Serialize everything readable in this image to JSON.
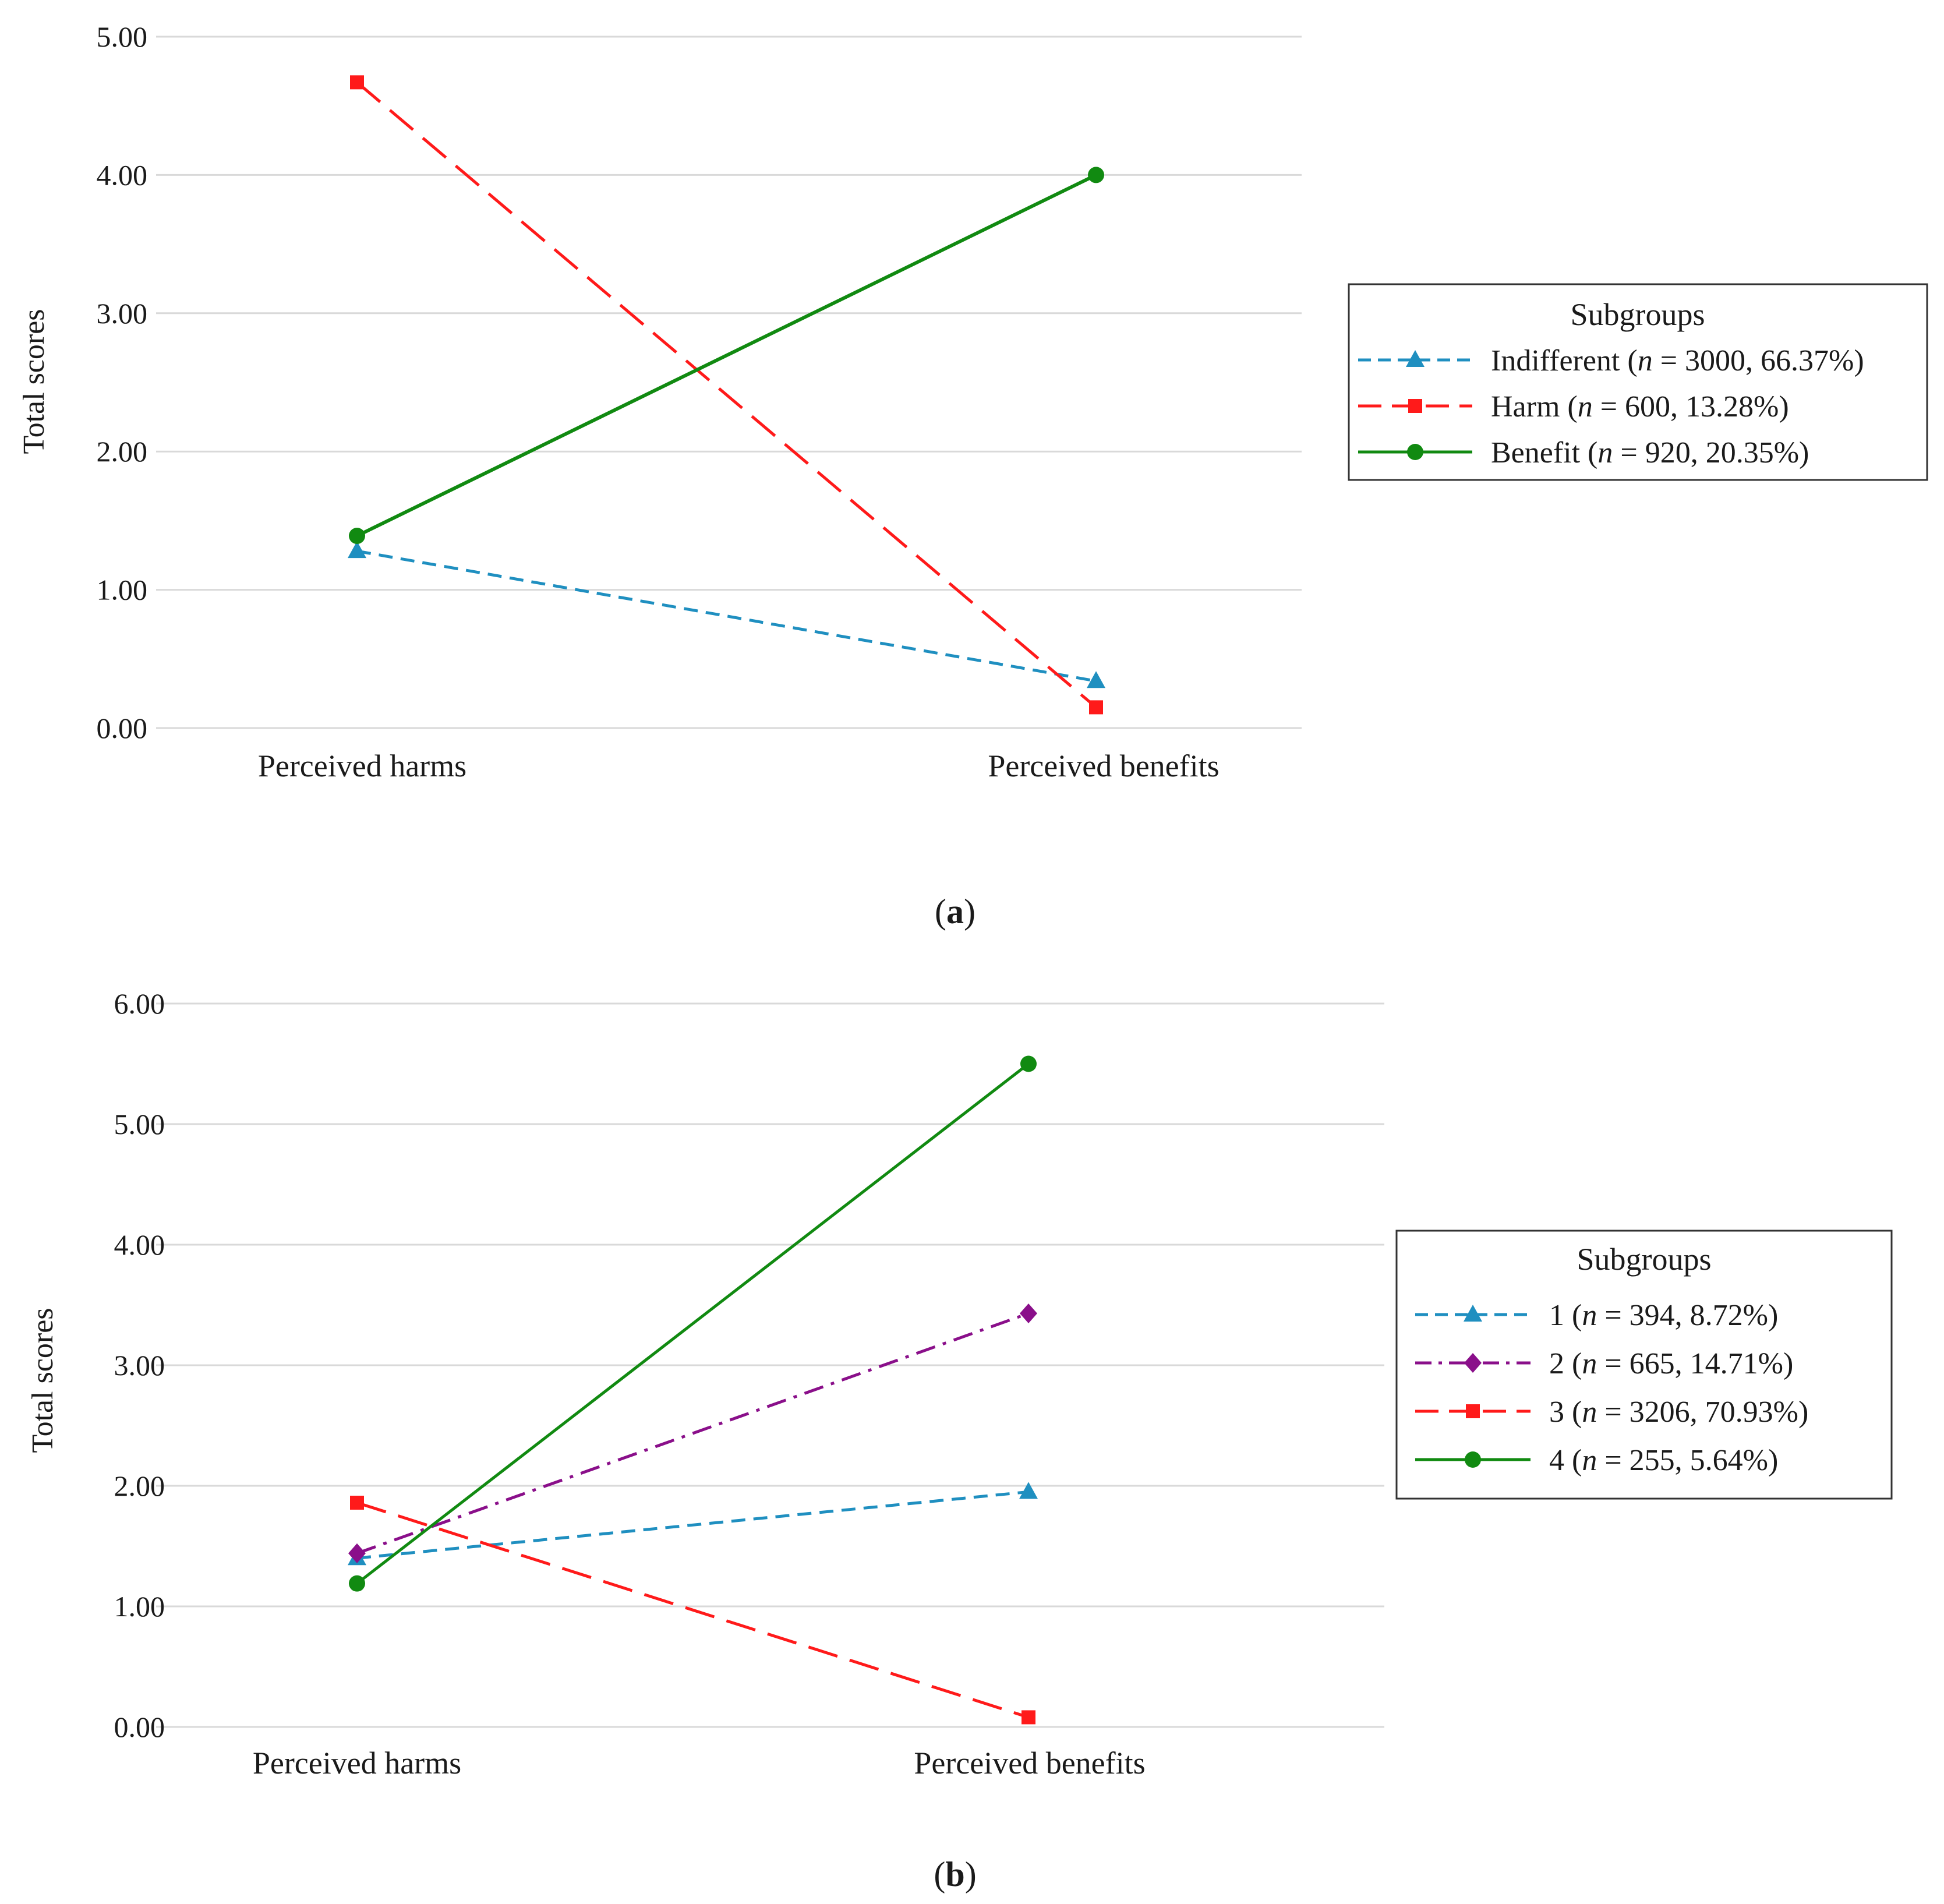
{
  "chart_data": [
    {
      "type": "line",
      "panel_label": "a",
      "categories": [
        "Perceived harms",
        "Perceived benefits"
      ],
      "ylabel": "Total scores",
      "ylim": [
        0,
        5
      ],
      "yticks": [
        "0.00",
        "1.00",
        "2.00",
        "3.00",
        "4.00",
        "5.00"
      ],
      "grid": true,
      "legend_title": "Subgroups",
      "legend_position": "right",
      "series": [
        {
          "name": "Indifferent",
          "n_label": "n",
          "label_rest": " = 3000, 66.37%)",
          "label_prefix": "Indifferent (",
          "values": [
            1.28,
            0.34
          ],
          "color": "#1f8fc0",
          "marker": "triangle",
          "dash": "dashed"
        },
        {
          "name": "Harm",
          "n_label": "n",
          "label_rest": " = 600, 13.28%)",
          "label_prefix": "Harm (",
          "values": [
            4.67,
            0.15
          ],
          "color": "#ff1a1a",
          "marker": "square",
          "dash": "longdash"
        },
        {
          "name": "Benefit",
          "n_label": "n",
          "label_rest": " = 920, 20.35%)",
          "label_prefix": "Benefit (",
          "values": [
            1.39,
            4.0
          ],
          "color": "#118a11",
          "marker": "circle",
          "dash": "solid"
        }
      ]
    },
    {
      "type": "line",
      "panel_label": "b",
      "categories": [
        "Perceived harms",
        "Perceived benefits"
      ],
      "ylabel": "Total scores",
      "ylim": [
        0,
        6
      ],
      "yticks": [
        "0.00",
        "1.00",
        "2.00",
        "3.00",
        "4.00",
        "5.00",
        "6.00"
      ],
      "grid": true,
      "legend_title": "Subgroups",
      "legend_position": "right",
      "series": [
        {
          "name": "1",
          "n_label": "n",
          "label_rest": " = 394, 8.72%)",
          "label_prefix": "1 (",
          "values": [
            1.4,
            1.95
          ],
          "color": "#1f8fc0",
          "marker": "triangle",
          "dash": "dashed"
        },
        {
          "name": "2",
          "n_label": "n",
          "label_rest": " = 665, 14.71%)",
          "label_prefix": "2 (",
          "values": [
            1.44,
            3.43
          ],
          "color": "#8a0f8a",
          "marker": "diamond",
          "dash": "dashdot"
        },
        {
          "name": "3",
          "n_label": "n",
          "label_rest": " = 3206, 70.93%)",
          "label_prefix": "3 (",
          "values": [
            1.86,
            0.08
          ],
          "color": "#ff1a1a",
          "marker": "square",
          "dash": "longdash"
        },
        {
          "name": "4",
          "n_label": "n",
          "label_rest": " = 255, 5.64%)",
          "label_prefix": "4 (",
          "values": [
            1.19,
            5.5
          ],
          "color": "#118a11",
          "marker": "circle",
          "dash": "solid"
        }
      ]
    }
  ]
}
